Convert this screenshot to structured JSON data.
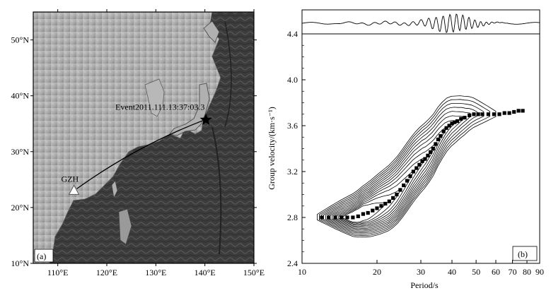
{
  "figure": {
    "panel_a": {
      "label": "(a)",
      "lat_ticks": [
        "10°N",
        "20°N",
        "30°N",
        "40°N",
        "50°N"
      ],
      "lon_ticks": [
        "110°E",
        "120°E",
        "130°E",
        "140°E",
        "150°E"
      ],
      "station": {
        "name": "GZH",
        "lon": 113.3,
        "lat": 23.1
      },
      "event": {
        "label": "Event2011.111.13:37:03.3",
        "lon": 140.2,
        "lat": 35.7
      },
      "extent": {
        "lon": [
          105,
          150
        ],
        "lat": [
          10,
          55
        ]
      }
    },
    "panel_b": {
      "label": "(b)",
      "xlabel": "Period/s",
      "ylabel": "Group velocity/(km·s⁻¹)",
      "x_ticks": [
        "10",
        "20",
        "30",
        "40",
        "50",
        "60",
        "70",
        "80",
        "90"
      ],
      "y_ticks": [
        "2.4",
        "2.8",
        "3.2",
        "3.6",
        "4.0",
        "4.4"
      ]
    }
  },
  "chart_data": {
    "type": "scatter",
    "title": "",
    "xlabel": "Period/s",
    "ylabel": "Group velocity/(km·s⁻¹)",
    "x_scale": "log",
    "xlim": [
      10,
      90
    ],
    "ylim": [
      2.4,
      4.4
    ],
    "series": [
      {
        "name": "",
        "x": [
          12,
          12.8,
          13.6,
          14.4,
          15.2,
          16,
          16.8,
          17.6,
          18.4,
          19.2,
          20,
          20.8,
          21.6,
          22.4,
          23.2,
          24,
          24.8,
          25.6,
          26.4,
          27.2,
          28,
          28.8,
          29.6,
          30.4,
          31.2,
          32,
          32.8,
          33.6,
          34.4,
          35.2,
          36,
          37,
          38,
          39,
          40,
          41,
          42,
          43.5,
          45,
          47,
          49,
          51,
          53,
          56,
          59,
          62,
          65,
          68,
          71,
          74,
          77
        ],
        "y": [
          2.8,
          2.8,
          2.8,
          2.8,
          2.8,
          2.8,
          2.81,
          2.83,
          2.84,
          2.86,
          2.88,
          2.9,
          2.92,
          2.94,
          2.97,
          3.0,
          3.04,
          3.08,
          3.12,
          3.16,
          3.2,
          3.23,
          3.26,
          3.29,
          3.31,
          3.34,
          3.37,
          3.4,
          3.44,
          3.48,
          3.51,
          3.55,
          3.58,
          3.6,
          3.62,
          3.63,
          3.64,
          3.66,
          3.67,
          3.69,
          3.7,
          3.7,
          3.7,
          3.7,
          3.7,
          3.7,
          3.71,
          3.71,
          3.72,
          3.73,
          3.73
        ]
      }
    ]
  }
}
